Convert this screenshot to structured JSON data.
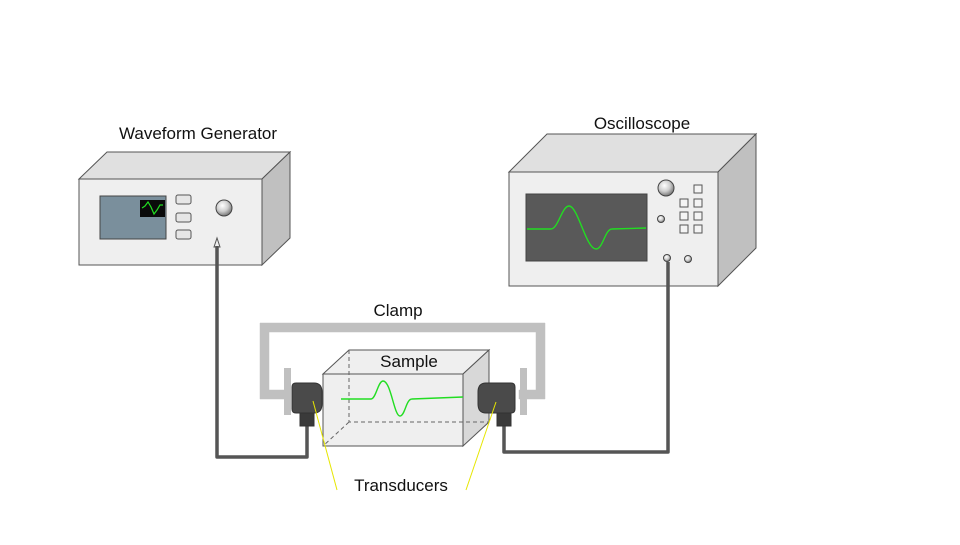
{
  "labels": {
    "waveform_generator": "Waveform Generator",
    "oscilloscope": "Oscilloscope",
    "clamp": "Clamp",
    "sample": "Sample",
    "transducers": "Transducers"
  },
  "colors": {
    "device_body": "#efefef",
    "device_top": "#e0e0e0",
    "device_side": "#c0c0c0",
    "outline": "#555555",
    "screen_gen": "#7a8f9c",
    "screen_scope": "#595959",
    "trace": "#22dd22",
    "clamp": "#c0c0c0",
    "cable": "#555555",
    "transducer": "#4a4a4a",
    "leader": "#e6e600"
  },
  "icons": {
    "generator_knob": "knob-icon",
    "scope_knob": "knob-icon",
    "generator_mini_wave": "sine-wave-icon"
  }
}
